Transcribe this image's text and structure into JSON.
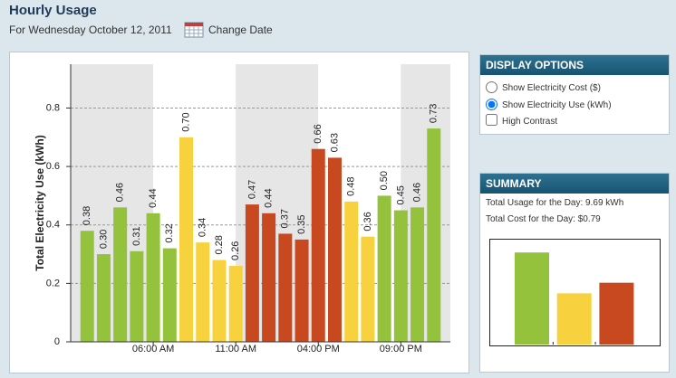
{
  "header": {
    "title": "Hourly Usage",
    "subtitle": "For Wednesday October 12, 2011",
    "change_date": "Change Date"
  },
  "display_options": {
    "title": "DISPLAY OPTIONS",
    "options": [
      "Show Electricity Cost ($)",
      "Show Electricity Use (kWh)",
      "High Contrast"
    ]
  },
  "summary": {
    "title": "SUMMARY",
    "total_usage": "Total Usage for the Day: 9.69 kWh",
    "total_cost": "Total Cost for the Day: $0.79"
  },
  "chart_data": [
    {
      "type": "bar",
      "ylabel": "Total Electricity Use (kWh)",
      "categories": [
        null,
        null,
        null,
        null,
        "06:00 AM",
        null,
        null,
        null,
        null,
        "11:00 AM",
        null,
        null,
        null,
        null,
        "04:00 PM",
        null,
        null,
        null,
        null,
        "09:00 PM",
        null,
        null
      ],
      "values": [
        0.38,
        0.3,
        0.46,
        0.31,
        0.44,
        0.32,
        0.7,
        0.34,
        0.28,
        0.26,
        0.47,
        0.44,
        0.37,
        0.35,
        0.66,
        0.63,
        0.48,
        0.36,
        0.5,
        0.45,
        0.46,
        0.73
      ],
      "value_labels": [
        "0.38",
        "0.30",
        "0.46",
        "0.31",
        "0.44",
        "0.32",
        "0.70",
        "0.34",
        "0.28",
        "0.26",
        "0.47",
        "0.44",
        "0.37",
        "0.35",
        "0.66",
        "0.63",
        "0.48",
        "0.36",
        "0.50",
        "0.45",
        "0.46",
        "0.73"
      ],
      "colors": [
        "#94c23c",
        "#94c23c",
        "#94c23c",
        "#94c23c",
        "#94c23c",
        "#94c23c",
        "#f8d23e",
        "#f8d23e",
        "#f8d23e",
        "#f8d23e",
        "#c8481f",
        "#c8481f",
        "#c8481f",
        "#c8481f",
        "#c8481f",
        "#c8481f",
        "#f8d23e",
        "#f8d23e",
        "#94c23c",
        "#94c23c",
        "#94c23c",
        "#94c23c"
      ],
      "ylim": [
        0,
        0.95
      ],
      "yticks": [
        0,
        0.2,
        0.4,
        0.6,
        0.8
      ],
      "grid": true
    },
    {
      "type": "bar",
      "values": [
        4.35,
        2.42,
        2.92
      ],
      "colors": [
        "#94c23c",
        "#f8d23e",
        "#c8481f"
      ],
      "ylim": [
        0,
        5
      ]
    }
  ]
}
